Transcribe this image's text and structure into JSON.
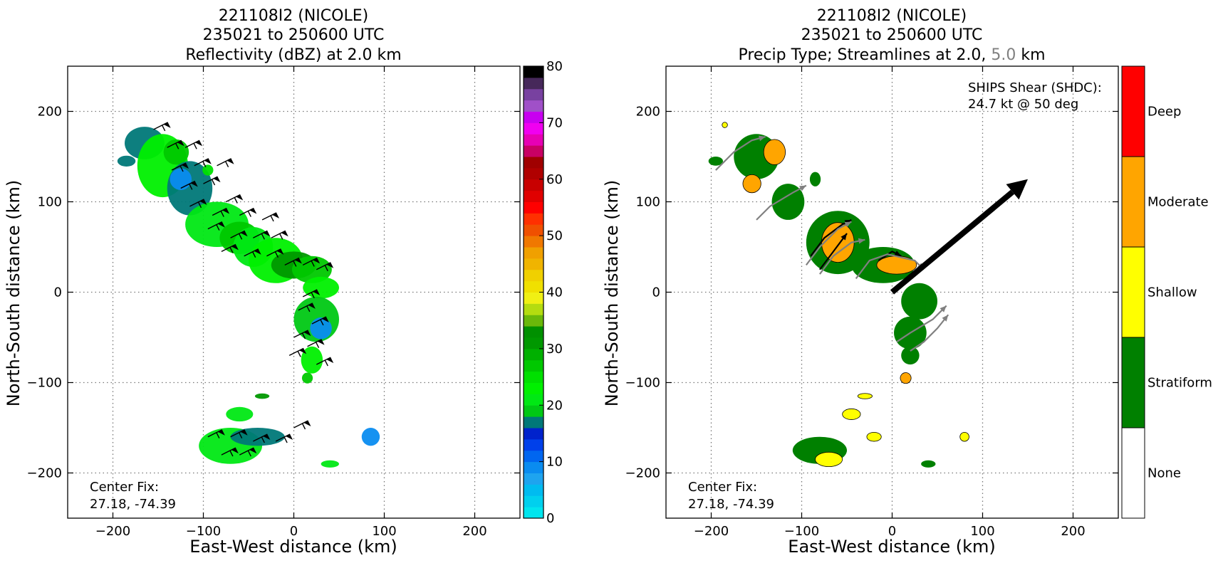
{
  "colors": {
    "stratiform": "#008000",
    "shallow": "#ffff00",
    "moderate": "#ffa500",
    "deep": "#ff0000",
    "none": "#ffffff",
    "streamline_low": "#000000",
    "streamline_high": "#808080",
    "shear_arrow": "#000000"
  },
  "chart_data": [
    {
      "type": "heatmap",
      "title_lines": [
        "221108I2 (NICOLE)",
        "235021 to 250600 UTC",
        "Reflectivity (dBZ) at 2.0 km"
      ],
      "xlabel": "East-West distance (km)",
      "ylabel": "North-South distance (km)",
      "xlim": [
        -250,
        250
      ],
      "ylim": [
        -250,
        250
      ],
      "xticks": [
        -200,
        -100,
        0,
        100,
        200
      ],
      "yticks": [
        -200,
        -100,
        0,
        100,
        200
      ],
      "xtick_labels": [
        "−200",
        "−100",
        "0",
        "100",
        "200"
      ],
      "ytick_labels": [
        "−200",
        "−100",
        "0",
        "100",
        "200"
      ],
      "grid": true,
      "annotation_lines": [
        "Center Fix:",
        "27.18, -74.39"
      ],
      "colorbar": {
        "min": 0,
        "max": 80,
        "step": 2.5,
        "ticks": [
          0,
          10,
          20,
          30,
          40,
          50,
          60,
          70,
          80
        ],
        "tick_labels": [
          "0",
          "10",
          "20",
          "30",
          "40",
          "50",
          "60",
          "70",
          "80"
        ],
        "colors": [
          "#00e5ee",
          "#00d0ee",
          "#00bbf0",
          "#1ea4ef",
          "#0a8cf0",
          "#0066f0",
          "#0040ea",
          "#0022cc",
          "#007878",
          "#00c814",
          "#00e814",
          "#00f000",
          "#00e000",
          "#00c800",
          "#00b000",
          "#009800",
          "#009000",
          "#6ab80a",
          "#b4dc10",
          "#f0f014",
          "#f0e000",
          "#f0d000",
          "#f0b400",
          "#f0a000",
          "#f07800",
          "#f05000",
          "#ff3000",
          "#ff0000",
          "#e00000",
          "#c80000",
          "#b00000",
          "#a00000",
          "#c80064",
          "#e600b4",
          "#f000f0",
          "#c800f0",
          "#a050c8",
          "#7841a0",
          "#46285a",
          "#000000"
        ]
      },
      "regions": [
        {
          "x": -165,
          "y": 165,
          "rx": 22,
          "ry": 18,
          "dbz": 20
        },
        {
          "x": -145,
          "y": 140,
          "rx": 28,
          "ry": 35,
          "dbz": 28
        },
        {
          "x": -130,
          "y": 155,
          "rx": 14,
          "ry": 14,
          "dbz": 33
        },
        {
          "x": -115,
          "y": 115,
          "rx": 25,
          "ry": 30,
          "dbz": 22
        },
        {
          "x": -125,
          "y": 125,
          "rx": 12,
          "ry": 12,
          "dbz": 12
        },
        {
          "x": -85,
          "y": 75,
          "rx": 35,
          "ry": 25,
          "dbz": 27
        },
        {
          "x": -60,
          "y": 60,
          "rx": 22,
          "ry": 18,
          "dbz": 34
        },
        {
          "x": -45,
          "y": 50,
          "rx": 22,
          "ry": 22,
          "dbz": 25
        },
        {
          "x": -20,
          "y": 35,
          "rx": 30,
          "ry": 25,
          "dbz": 28
        },
        {
          "x": 0,
          "y": 30,
          "rx": 25,
          "ry": 15,
          "dbz": 38
        },
        {
          "x": 20,
          "y": 25,
          "rx": 22,
          "ry": 15,
          "dbz": 33
        },
        {
          "x": 30,
          "y": 5,
          "rx": 20,
          "ry": 12,
          "dbz": 28
        },
        {
          "x": 25,
          "y": -30,
          "rx": 25,
          "ry": 25,
          "dbz": 24
        },
        {
          "x": 30,
          "y": -40,
          "rx": 12,
          "ry": 12,
          "dbz": 10
        },
        {
          "x": 20,
          "y": -75,
          "rx": 12,
          "ry": 15,
          "dbz": 28
        },
        {
          "x": 15,
          "y": -95,
          "rx": 6,
          "ry": 6,
          "dbz": 34
        },
        {
          "x": -70,
          "y": -170,
          "rx": 35,
          "ry": 20,
          "dbz": 27
        },
        {
          "x": -40,
          "y": -160,
          "rx": 30,
          "ry": 10,
          "dbz": 22
        },
        {
          "x": -60,
          "y": -135,
          "rx": 15,
          "ry": 8,
          "dbz": 27
        },
        {
          "x": 85,
          "y": -160,
          "rx": 10,
          "ry": 10,
          "dbz": 12
        },
        {
          "x": 40,
          "y": -190,
          "rx": 10,
          "ry": 4,
          "dbz": 25
        },
        {
          "x": -35,
          "y": -115,
          "rx": 8,
          "ry": 3,
          "dbz": 38
        },
        {
          "x": -95,
          "y": 135,
          "rx": 6,
          "ry": 6,
          "dbz": 30
        },
        {
          "x": -185,
          "y": 145,
          "rx": 10,
          "ry": 6,
          "dbz": 22
        }
      ],
      "barbs": [
        {
          "x": -155,
          "y": 180
        },
        {
          "x": -140,
          "y": 160
        },
        {
          "x": -120,
          "y": 160
        },
        {
          "x": -135,
          "y": 135
        },
        {
          "x": -110,
          "y": 140
        },
        {
          "x": -85,
          "y": 140
        },
        {
          "x": -125,
          "y": 115
        },
        {
          "x": -100,
          "y": 120
        },
        {
          "x": -75,
          "y": 100
        },
        {
          "x": -115,
          "y": 95
        },
        {
          "x": -90,
          "y": 85
        },
        {
          "x": -60,
          "y": 85
        },
        {
          "x": -35,
          "y": 80
        },
        {
          "x": -95,
          "y": 70
        },
        {
          "x": -70,
          "y": 60
        },
        {
          "x": -45,
          "y": 60
        },
        {
          "x": -25,
          "y": 60
        },
        {
          "x": -80,
          "y": 45
        },
        {
          "x": -55,
          "y": 40
        },
        {
          "x": -30,
          "y": 40
        },
        {
          "x": -10,
          "y": 30
        },
        {
          "x": 10,
          "y": 30
        },
        {
          "x": 25,
          "y": 25
        },
        {
          "x": 10,
          "y": -5
        },
        {
          "x": 5,
          "y": -20
        },
        {
          "x": 20,
          "y": -35
        },
        {
          "x": 0,
          "y": -50
        },
        {
          "x": 15,
          "y": -60
        },
        {
          "x": -5,
          "y": -70
        },
        {
          "x": 25,
          "y": -80
        },
        {
          "x": -95,
          "y": -160
        },
        {
          "x": -70,
          "y": -160
        },
        {
          "x": -45,
          "y": -165
        },
        {
          "x": -20,
          "y": -165
        },
        {
          "x": 0,
          "y": -150
        },
        {
          "x": -80,
          "y": -180
        },
        {
          "x": -60,
          "y": -180
        }
      ]
    },
    {
      "type": "heatmap",
      "title_lines": [
        "221108I2 (NICOLE)",
        "235021 to 250600 UTC"
      ],
      "title_line3": {
        "prefix": "Precip Type; Streamlines at 2.0, ",
        "highlight": "5.0",
        "suffix": " km"
      },
      "xlabel": "East-West distance (km)",
      "ylabel": "North-South distance (km)",
      "xlim": [
        -250,
        250
      ],
      "ylim": [
        -250,
        250
      ],
      "xticks": [
        -200,
        -100,
        0,
        100,
        200
      ],
      "yticks": [
        -200,
        -100,
        0,
        100,
        200
      ],
      "xtick_labels": [
        "−200",
        "−100",
        "0",
        "100",
        "200"
      ],
      "ytick_labels": [
        "−200",
        "−100",
        "0",
        "100",
        "200"
      ],
      "grid": true,
      "annotation_lines": [
        "Center Fix:",
        "27.18, -74.39"
      ],
      "shear_lines": [
        "SHIPS Shear (SHDC):",
        "24.7 kt @ 50 deg"
      ],
      "shear": {
        "speed_kt": 24.7,
        "direction_deg": 50,
        "arrow_from": [
          0,
          0
        ],
        "arrow_to": [
          150,
          125
        ]
      },
      "categories": [
        "None",
        "Stratiform",
        "Shallow",
        "Moderate",
        "Deep"
      ],
      "regions": [
        {
          "x": -150,
          "y": 150,
          "rx": 25,
          "ry": 25,
          "cat": 1
        },
        {
          "x": -155,
          "y": 120,
          "rx": 10,
          "ry": 10,
          "cat": 3
        },
        {
          "x": -130,
          "y": 155,
          "rx": 12,
          "ry": 14,
          "cat": 3
        },
        {
          "x": -115,
          "y": 100,
          "rx": 18,
          "ry": 20,
          "cat": 1
        },
        {
          "x": -60,
          "y": 55,
          "rx": 35,
          "ry": 35,
          "cat": 1
        },
        {
          "x": -60,
          "y": 55,
          "rx": 18,
          "ry": 22,
          "cat": 3
        },
        {
          "x": -10,
          "y": 30,
          "rx": 35,
          "ry": 20,
          "cat": 1
        },
        {
          "x": 5,
          "y": 30,
          "rx": 22,
          "ry": 10,
          "cat": 3
        },
        {
          "x": 30,
          "y": -10,
          "rx": 20,
          "ry": 20,
          "cat": 1
        },
        {
          "x": 20,
          "y": -45,
          "rx": 18,
          "ry": 18,
          "cat": 1
        },
        {
          "x": 20,
          "y": -70,
          "rx": 10,
          "ry": 10,
          "cat": 1
        },
        {
          "x": 15,
          "y": -95,
          "rx": 6,
          "ry": 6,
          "cat": 3
        },
        {
          "x": -80,
          "y": -175,
          "rx": 30,
          "ry": 15,
          "cat": 1
        },
        {
          "x": -70,
          "y": -185,
          "rx": 15,
          "ry": 8,
          "cat": 2
        },
        {
          "x": -45,
          "y": -135,
          "rx": 10,
          "ry": 6,
          "cat": 2
        },
        {
          "x": -30,
          "y": -115,
          "rx": 8,
          "ry": 3,
          "cat": 2
        },
        {
          "x": -20,
          "y": -160,
          "rx": 8,
          "ry": 5,
          "cat": 2
        },
        {
          "x": 80,
          "y": -160,
          "rx": 5,
          "ry": 5,
          "cat": 2
        },
        {
          "x": 40,
          "y": -190,
          "rx": 8,
          "ry": 4,
          "cat": 1
        },
        {
          "x": -85,
          "y": 125,
          "rx": 6,
          "ry": 8,
          "cat": 1
        },
        {
          "x": -195,
          "y": 145,
          "rx": 8,
          "ry": 5,
          "cat": 1
        },
        {
          "x": -185,
          "y": 185,
          "rx": 3,
          "ry": 3,
          "cat": 2
        }
      ],
      "streamlines": [
        {
          "level": "low",
          "points": [
            [
              -90,
              40
            ],
            [
              -75,
              60
            ],
            [
              -55,
              75
            ],
            [
              -45,
              80
            ]
          ]
        },
        {
          "level": "low",
          "points": [
            [
              -80,
              25
            ],
            [
              -65,
              45
            ],
            [
              -50,
              65
            ]
          ]
        },
        {
          "level": "low",
          "points": [
            [
              -15,
              35
            ],
            [
              0,
              45
            ],
            [
              10,
              40
            ]
          ]
        },
        {
          "level": "high",
          "points": [
            [
              -195,
              135
            ],
            [
              -175,
              155
            ],
            [
              -155,
              168
            ],
            [
              -140,
              172
            ]
          ]
        },
        {
          "level": "high",
          "points": [
            [
              -150,
              80
            ],
            [
              -135,
              95
            ],
            [
              -110,
              110
            ],
            [
              -95,
              118
            ]
          ]
        },
        {
          "level": "high",
          "points": [
            [
              -95,
              30
            ],
            [
              -80,
              50
            ],
            [
              -60,
              70
            ],
            [
              -45,
              78
            ]
          ]
        },
        {
          "level": "high",
          "points": [
            [
              -80,
              20
            ],
            [
              -65,
              40
            ],
            [
              -45,
              55
            ],
            [
              -30,
              58
            ]
          ]
        },
        {
          "level": "high",
          "points": [
            [
              -40,
              15
            ],
            [
              -25,
              35
            ],
            [
              -5,
              42
            ],
            [
              25,
              35
            ],
            [
              35,
              25
            ]
          ]
        },
        {
          "level": "high",
          "points": [
            [
              5,
              -55
            ],
            [
              20,
              -45
            ],
            [
              45,
              -30
            ],
            [
              60,
              -15
            ]
          ]
        },
        {
          "level": "high",
          "points": [
            [
              20,
              -65
            ],
            [
              35,
              -55
            ],
            [
              50,
              -40
            ],
            [
              62,
              -25
            ]
          ]
        }
      ]
    }
  ]
}
